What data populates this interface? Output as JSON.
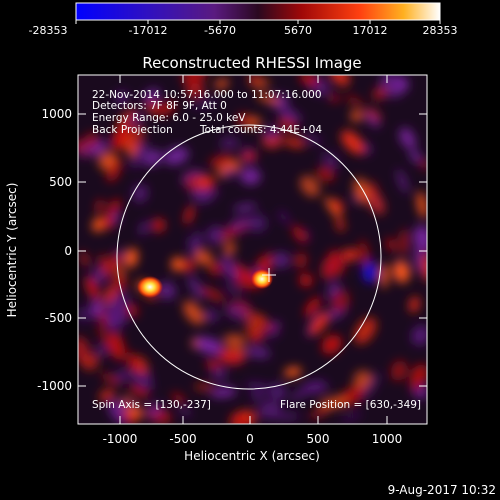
{
  "colorbar": {
    "ticks": [
      "-28353",
      "-17012",
      "-5670",
      "5670",
      "17012",
      "28353"
    ]
  },
  "plot": {
    "title": "Reconstructed RHESSI Image",
    "xlabel": "Heliocentric X (arcsec)",
    "ylabel": "Heliocentric Y (arcsec)",
    "xticks": [
      "-1000",
      "-500",
      "0",
      "500",
      "1000"
    ],
    "yticks": [
      "1000",
      "500",
      "0",
      "-500",
      "-1000"
    ]
  },
  "annotations": {
    "time_range": "22-Nov-2014 10:57:16.000 to 11:07:16.000",
    "detectors": "Detectors: 7F 8F 9F, Att 0",
    "energy_range": "Energy Range: 6.0 - 25.0 keV",
    "method": "Back Projection",
    "total_counts": "Total counts: 4.44E+04",
    "spin_axis": "Spin Axis = [130,-237]",
    "flare_position": "Flare Position = [630,-349]"
  },
  "footer": {
    "timestamp": "9-Aug-2017 10:32"
  },
  "colors": {
    "background": "#000000",
    "frame": "#ffffff",
    "colorscale": [
      "#0000ff",
      "#6a2a9a",
      "#1a0820",
      "#3a0a40",
      "#c01010",
      "#ff4010",
      "#ffb020",
      "#ffffff"
    ]
  }
}
